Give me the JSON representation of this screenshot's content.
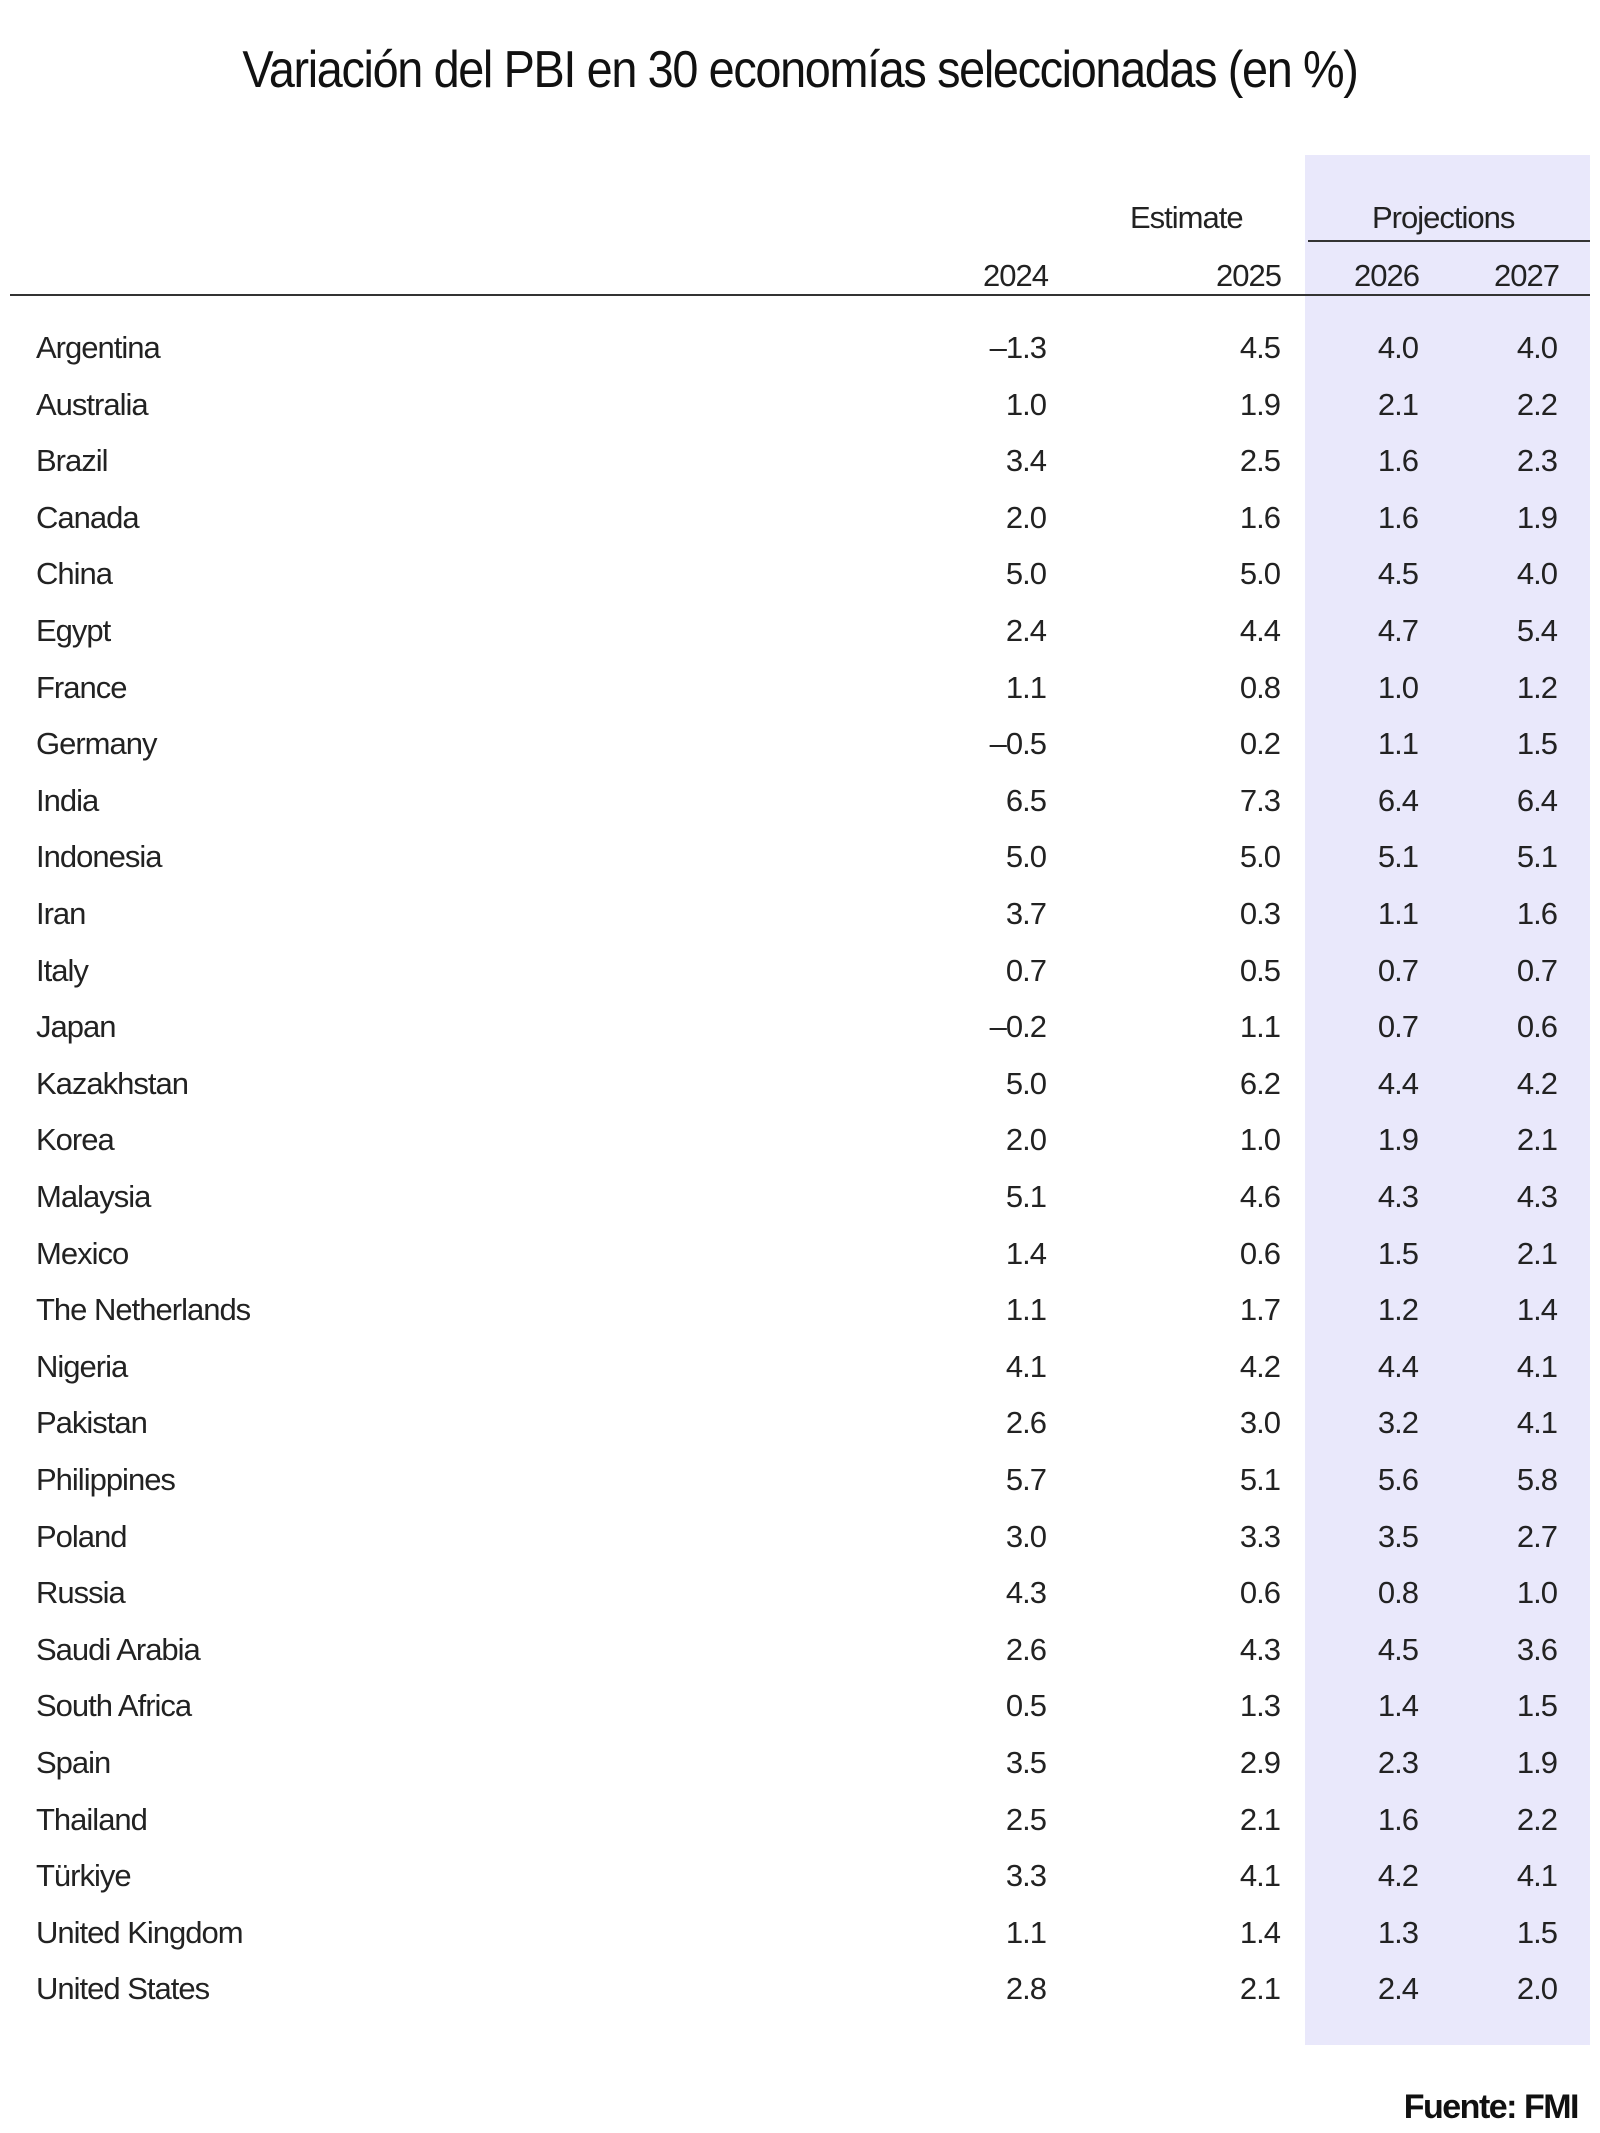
{
  "chart_data": {
    "type": "table",
    "title": "Variación del PBI en 30 economías seleccionadas (en %)",
    "group_headers": {
      "estimate": "Estimate",
      "projections": "Projections"
    },
    "columns": [
      "2024",
      "2025",
      "2026",
      "2027"
    ],
    "rows": [
      {
        "country": "Argentina",
        "values": [
          "–1.3",
          "4.5",
          "4.0",
          "4.0"
        ]
      },
      {
        "country": "Australia",
        "values": [
          "1.0",
          "1.9",
          "2.1",
          "2.2"
        ]
      },
      {
        "country": "Brazil",
        "values": [
          "3.4",
          "2.5",
          "1.6",
          "2.3"
        ]
      },
      {
        "country": "Canada",
        "values": [
          "2.0",
          "1.6",
          "1.6",
          "1.9"
        ]
      },
      {
        "country": "China",
        "values": [
          "5.0",
          "5.0",
          "4.5",
          "4.0"
        ]
      },
      {
        "country": "Egypt",
        "values": [
          "2.4",
          "4.4",
          "4.7",
          "5.4"
        ]
      },
      {
        "country": "France",
        "values": [
          "1.1",
          "0.8",
          "1.0",
          "1.2"
        ]
      },
      {
        "country": "Germany",
        "values": [
          "–0.5",
          "0.2",
          "1.1",
          "1.5"
        ]
      },
      {
        "country": "India",
        "values": [
          "6.5",
          "7.3",
          "6.4",
          "6.4"
        ]
      },
      {
        "country": "Indonesia",
        "values": [
          "5.0",
          "5.0",
          "5.1",
          "5.1"
        ]
      },
      {
        "country": "Iran",
        "values": [
          "3.7",
          "0.3",
          "1.1",
          "1.6"
        ]
      },
      {
        "country": "Italy",
        "values": [
          "0.7",
          "0.5",
          "0.7",
          "0.7"
        ]
      },
      {
        "country": "Japan",
        "values": [
          "–0.2",
          "1.1",
          "0.7",
          "0.6"
        ]
      },
      {
        "country": "Kazakhstan",
        "values": [
          "5.0",
          "6.2",
          "4.4",
          "4.2"
        ]
      },
      {
        "country": "Korea",
        "values": [
          "2.0",
          "1.0",
          "1.9",
          "2.1"
        ]
      },
      {
        "country": "Malaysia",
        "values": [
          "5.1",
          "4.6",
          "4.3",
          "4.3"
        ]
      },
      {
        "country": "Mexico",
        "values": [
          "1.4",
          "0.6",
          "1.5",
          "2.1"
        ]
      },
      {
        "country": "The Netherlands",
        "values": [
          "1.1",
          "1.7",
          "1.2",
          "1.4"
        ]
      },
      {
        "country": "Nigeria",
        "values": [
          "4.1",
          "4.2",
          "4.4",
          "4.1"
        ]
      },
      {
        "country": "Pakistan",
        "values": [
          "2.6",
          "3.0",
          "3.2",
          "4.1"
        ]
      },
      {
        "country": "Philippines",
        "values": [
          "5.7",
          "5.1",
          "5.6",
          "5.8"
        ]
      },
      {
        "country": "Poland",
        "values": [
          "3.0",
          "3.3",
          "3.5",
          "2.7"
        ]
      },
      {
        "country": "Russia",
        "values": [
          "4.3",
          "0.6",
          "0.8",
          "1.0"
        ]
      },
      {
        "country": "Saudi Arabia",
        "values": [
          "2.6",
          "4.3",
          "4.5",
          "3.6"
        ]
      },
      {
        "country": "South Africa",
        "values": [
          "0.5",
          "1.3",
          "1.4",
          "1.5"
        ]
      },
      {
        "country": "Spain",
        "values": [
          "3.5",
          "2.9",
          "2.3",
          "1.9"
        ]
      },
      {
        "country": "Thailand",
        "values": [
          "2.5",
          "2.1",
          "1.6",
          "2.2"
        ]
      },
      {
        "country": "Türkiye",
        "values": [
          "3.3",
          "4.1",
          "4.2",
          "4.1"
        ]
      },
      {
        "country": "United Kingdom",
        "values": [
          "1.1",
          "1.4",
          "1.3",
          "1.5"
        ]
      },
      {
        "country": "United States",
        "values": [
          "2.8",
          "2.1",
          "2.4",
          "2.0"
        ]
      }
    ],
    "source": "Fuente: FMI",
    "colors": {
      "projection_shade": "#e9e8fb",
      "text": "#222222"
    }
  }
}
